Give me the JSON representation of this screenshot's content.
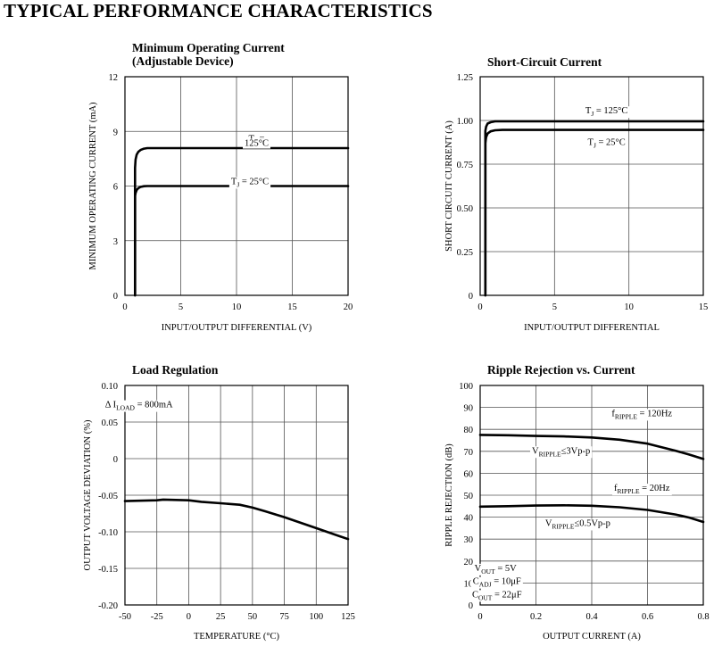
{
  "page": {
    "heading": "TYPICAL PERFORMANCE CHARACTERISTICS"
  },
  "chart_data": [
    {
      "type": "line",
      "title": [
        "Minimum Operating Current",
        "(Adjustable Device)"
      ],
      "xlabel": "INPUT/OUTPUT DIFFERENTIAL (V)",
      "ylabel": "MINIMUM OPERATING CURRENT (mA)",
      "xlim": [
        0,
        20
      ],
      "ylim": [
        0,
        12
      ],
      "xticks": [
        0,
        5,
        10,
        15,
        20
      ],
      "yticks": [
        0,
        3,
        6,
        9,
        12
      ],
      "xtick_labels": [
        "0",
        "5",
        "10",
        "15",
        "20"
      ],
      "ytick_labels": [
        "0",
        "3",
        "6",
        "9",
        "12"
      ],
      "grid": true,
      "series": [
        {
          "name": "TJ = 125°C",
          "x": [
            0.9,
            0.9,
            0.95,
            1.05,
            1.2,
            1.4,
            1.7,
            2.0,
            3.0,
            20
          ],
          "y": [
            0,
            7.0,
            7.45,
            7.72,
            7.88,
            7.98,
            8.05,
            8.08,
            8.08,
            8.08
          ]
        },
        {
          "name": "TJ = 25°C",
          "x": [
            0.9,
            0.9,
            0.95,
            1.05,
            1.2,
            1.4,
            1.7,
            2.0,
            3.0,
            20
          ],
          "y": [
            0,
            5.45,
            5.62,
            5.78,
            5.88,
            5.95,
            5.99,
            6.0,
            6.0,
            6.0
          ]
        }
      ],
      "annotations": [
        {
          "pre": "T",
          "sub": "J",
          "post": " =",
          "x": 11.8,
          "y": 8.45
        },
        {
          "pre": "125°C",
          "sub": "",
          "post": "",
          "x": 11.8,
          "y": 8.2
        },
        {
          "pre": "T",
          "sub": "J",
          "post": " = 25°C",
          "x": 11.2,
          "y": 6.1
        }
      ]
    },
    {
      "type": "line",
      "title": [
        "Short-Circuit Current"
      ],
      "xlabel": "INPUT/OUTPUT DIFFERENTIAL",
      "ylabel": "SHORT CIRCUIT CURRENT (A)",
      "xlim": [
        0,
        15
      ],
      "ylim": [
        0,
        1.25
      ],
      "xticks": [
        0,
        5,
        10,
        15
      ],
      "yticks": [
        0,
        0.25,
        0.5,
        0.75,
        1.0,
        1.25
      ],
      "xtick_labels": [
        "0",
        "5",
        "10",
        "15"
      ],
      "ytick_labels": [
        "0",
        "0.25",
        "0.50",
        "0.75",
        "1.00",
        "1.25"
      ],
      "grid": true,
      "series": [
        {
          "name": "TJ = 125°C",
          "x": [
            0.35,
            0.35,
            0.4,
            0.5,
            0.7,
            1.0,
            15
          ],
          "y": [
            0,
            0.94,
            0.965,
            0.982,
            0.99,
            0.995,
            0.995
          ]
        },
        {
          "name": "TJ = 25°C",
          "x": [
            0.35,
            0.35,
            0.4,
            0.5,
            0.7,
            1.0,
            1.5,
            15
          ],
          "y": [
            0,
            0.87,
            0.905,
            0.925,
            0.938,
            0.944,
            0.946,
            0.946
          ]
        }
      ],
      "annotations": [
        {
          "pre": "T",
          "sub": "J",
          "post": " = 125°C",
          "x": 8.5,
          "y": 1.04
        },
        {
          "pre": "T",
          "sub": "J",
          "post": " = 25°C",
          "x": 8.5,
          "y": 0.86
        }
      ]
    },
    {
      "type": "line",
      "title": [
        "Load Regulation"
      ],
      "xlabel": "TEMPERATURE (°C)",
      "ylabel": "OUTPUT VOLTAGE DEVIATION (%)",
      "xlim": [
        -50,
        125
      ],
      "ylim": [
        -0.2,
        0.1
      ],
      "xticks": [
        -50,
        -25,
        0,
        25,
        50,
        75,
        100,
        125
      ],
      "yticks": [
        -0.2,
        -0.15,
        -0.1,
        -0.05,
        0,
        0.05,
        0.1
      ],
      "xtick_labels": [
        "-50",
        "-25",
        "0",
        "25",
        "50",
        "75",
        "100",
        "125"
      ],
      "ytick_labels": [
        "-0.20",
        "-0.15",
        "-0.10",
        "-0.05",
        "0",
        "0.05",
        "0.10"
      ],
      "grid": true,
      "series": [
        {
          "name": "",
          "x": [
            -50,
            -25,
            -20,
            0,
            10,
            25,
            40,
            50,
            60,
            75,
            100,
            125
          ],
          "y": [
            -0.058,
            -0.057,
            -0.056,
            -0.057,
            -0.059,
            -0.061,
            -0.063,
            -0.067,
            -0.072,
            -0.08,
            -0.095,
            -0.11
          ]
        }
      ],
      "annotations": [
        {
          "pre": "Δ I",
          "sub": "LOAD",
          "post": " = 800mA",
          "x": -39,
          "y": 0.07
        }
      ]
    },
    {
      "type": "line",
      "title": [
        "Ripple Rejection vs. Current"
      ],
      "xlabel": "OUTPUT CURRENT (A)",
      "ylabel": "RIPPLE REJECTION (dB)",
      "xlim": [
        0,
        0.8
      ],
      "ylim": [
        0,
        100
      ],
      "xticks": [
        0,
        0.2,
        0.4,
        0.6,
        0.8
      ],
      "yticks": [
        0,
        10,
        20,
        30,
        40,
        50,
        60,
        70,
        80,
        90,
        100
      ],
      "xtick_labels": [
        "0",
        "0.2",
        "0.4",
        "0.6",
        "0.8"
      ],
      "ytick_labels": [
        "0",
        "10",
        "20",
        "30",
        "40",
        "50",
        "60",
        "70",
        "80",
        "90",
        "100"
      ],
      "grid": true,
      "series": [
        {
          "name": "fRIPPLE = 120Hz",
          "x": [
            0,
            0.1,
            0.2,
            0.3,
            0.4,
            0.5,
            0.6,
            0.7,
            0.75,
            0.8
          ],
          "y": [
            77.5,
            77.3,
            77.0,
            76.8,
            76.3,
            75.3,
            73.5,
            70.3,
            68.5,
            66.5
          ]
        },
        {
          "name": "fRIPPLE = 20Hz",
          "x": [
            0,
            0.1,
            0.2,
            0.3,
            0.4,
            0.5,
            0.6,
            0.7,
            0.75,
            0.8
          ],
          "y": [
            44.8,
            45.0,
            45.3,
            45.4,
            45.2,
            44.5,
            43.3,
            41.2,
            39.8,
            37.8
          ]
        }
      ],
      "annotations": [
        {
          "pre": "f",
          "sub": "RIPPLE",
          "post": " = 120Hz",
          "x": 0.58,
          "y": 86
        },
        {
          "pre": "V",
          "sub": "RIPPLE",
          "post": "≤3Vp-p",
          "x": 0.29,
          "y": 69
        },
        {
          "pre": "f",
          "sub": "RIPPLE",
          "post": " = 20Hz",
          "x": 0.58,
          "y": 52
        },
        {
          "pre": "V",
          "sub": "RIPPLE",
          "post": "≤0.5Vp-p",
          "x": 0.35,
          "y": 36
        },
        {
          "pre": "V",
          "sub": "OUT",
          "post": " = 5V",
          "x": 0.055,
          "y": 15.5
        },
        {
          "pre": "C",
          "sub": "ADJ",
          "post": " = 10μF",
          "x": 0.06,
          "y": 9.5
        },
        {
          "pre": "C",
          "sub": "OUT",
          "post": " = 22μF",
          "x": 0.06,
          "y": 3.5
        }
      ]
    }
  ]
}
